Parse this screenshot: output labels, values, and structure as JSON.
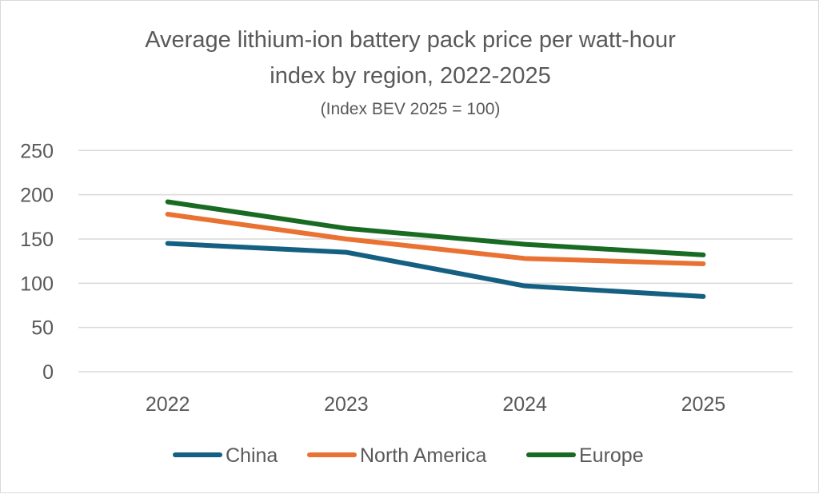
{
  "chart_data": {
    "type": "line",
    "title": "Average lithium-ion battery pack price per watt-hour index by region, 2022-2025",
    "title_lines": [
      "Average lithium-ion battery pack price per watt-hour",
      "index by region, 2022-2025"
    ],
    "subtitle": "(Index BEV 2025 = 100)",
    "categories": [
      "2022",
      "2023",
      "2024",
      "2025"
    ],
    "ylim": [
      0,
      250
    ],
    "yticks": [
      "0",
      "50",
      "100",
      "150",
      "200",
      "250"
    ],
    "grid": true,
    "legend_position": "bottom",
    "series": [
      {
        "name": "China",
        "color": "#156082",
        "values": [
          145,
          135,
          97,
          85
        ]
      },
      {
        "name": "North America",
        "color": "#E97132",
        "values": [
          178,
          150,
          128,
          122
        ]
      },
      {
        "name": "Europe",
        "color": "#196B24",
        "values": [
          192,
          162,
          144,
          132
        ]
      }
    ]
  }
}
